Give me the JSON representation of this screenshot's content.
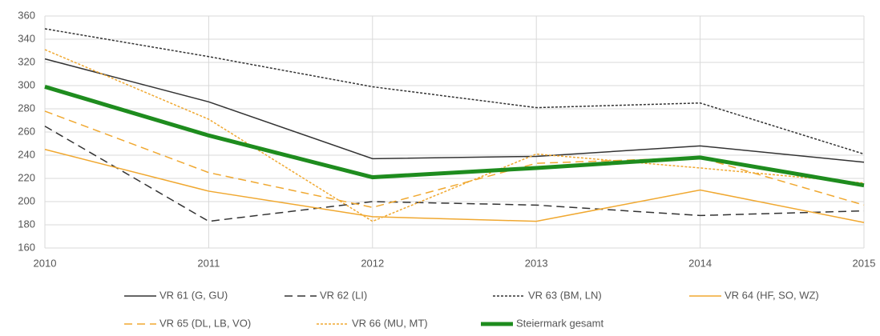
{
  "chart_data": {
    "type": "line",
    "x": [
      2010,
      2011,
      2012,
      2013,
      2014,
      2015
    ],
    "xlim": [
      2010,
      2015
    ],
    "xticks": [
      2010,
      2011,
      2012,
      2013,
      2014,
      2015
    ],
    "ylim": [
      160,
      360
    ],
    "yticks": [
      160,
      180,
      200,
      220,
      240,
      260,
      280,
      300,
      320,
      340,
      360
    ],
    "grid": true,
    "legend": "bottom",
    "series": [
      {
        "name": "VR 61 (G, GU)",
        "color": "#333333",
        "style": "solid",
        "width": 1.5,
        "values": [
          323,
          286,
          237,
          239,
          248,
          234
        ]
      },
      {
        "name": "VR 62 (LI)",
        "color": "#333333",
        "style": "dashed",
        "width": 1.5,
        "values": [
          265,
          183,
          200,
          197,
          188,
          192
        ]
      },
      {
        "name": "VR 63 (BM, LN)",
        "color": "#333333",
        "style": "dotted",
        "width": 1.5,
        "values": [
          349,
          325,
          299,
          281,
          285,
          241
        ]
      },
      {
        "name": "VR 64 (HF, SO, WZ)",
        "color": "#f0a830",
        "style": "solid",
        "width": 1.5,
        "values": [
          245,
          209,
          187,
          183,
          210,
          182
        ]
      },
      {
        "name": "VR 65 (DL, LB, VO)",
        "color": "#f0a830",
        "style": "dashed",
        "width": 1.5,
        "values": [
          278,
          225,
          195,
          233,
          238,
          197
        ]
      },
      {
        "name": "VR 66 (MU, MT)",
        "color": "#f0a830",
        "style": "dotted",
        "width": 1.5,
        "values": [
          331,
          271,
          183,
          241,
          229,
          216
        ]
      },
      {
        "name": "Steiermark gesamt",
        "color": "#1e8c1e",
        "style": "solid",
        "width": 5,
        "values": [
          299,
          257,
          221,
          229,
          238,
          214
        ]
      }
    ]
  }
}
